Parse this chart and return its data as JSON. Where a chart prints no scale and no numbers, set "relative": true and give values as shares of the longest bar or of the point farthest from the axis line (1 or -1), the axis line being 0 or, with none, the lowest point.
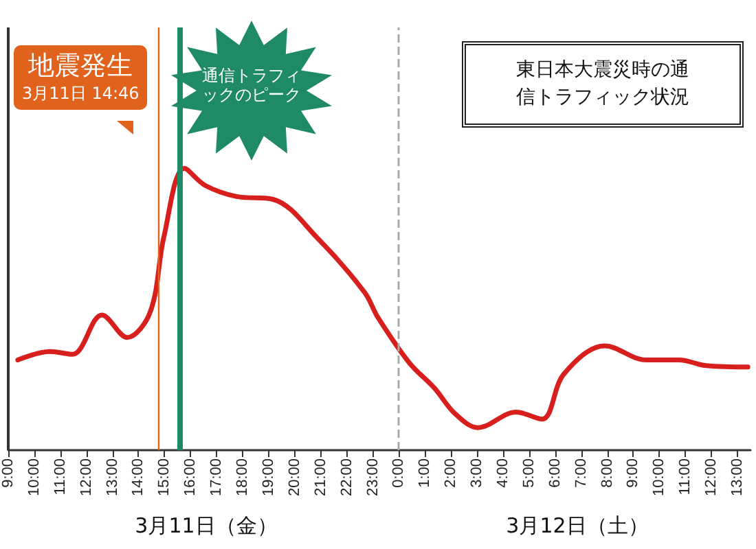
{
  "chart_data": {
    "type": "line",
    "relative": true,
    "title": "東日本大震災時の通信トラフィック状況",
    "x": [
      "--03-11T09:22",
      "--03-11T10:36",
      "--03-11T11:28",
      "--03-11T12:36",
      "--03-11T13:34",
      "--03-11T14:27",
      "--03-11T14:59",
      "--03-11T15:46",
      "--03-11T16:33",
      "--03-11T17:46",
      "--03-11T19:10",
      "--03-11T20:54",
      "--03-11T22:41",
      "--03-11T23:12",
      "--03-12T00:24",
      "--03-12T01:22",
      "--03-12T02:09",
      "--03-12T03:02",
      "--03-12T04:30",
      "--03-12T05:30",
      "--03-12T06:20",
      "--03-12T07:54",
      "--03-12T09:30",
      "--03-12T10:45",
      "--03-12T11:48",
      "--03-12T13:24"
    ],
    "xlim": [
      "--03-11T09:00",
      "--03-12T13:30"
    ],
    "xticks": [
      {
        "value": "--03-11T09:00",
        "label": "9:00"
      },
      {
        "value": "--03-11T10:00",
        "label": "10:00"
      },
      {
        "value": "--03-11T11:00",
        "label": "11:00"
      },
      {
        "value": "--03-11T12:00",
        "label": "12:00"
      },
      {
        "value": "--03-11T13:00",
        "label": "13:00"
      },
      {
        "value": "--03-11T14:00",
        "label": "14:00"
      },
      {
        "value": "--03-11T15:00",
        "label": "15:00"
      },
      {
        "value": "--03-11T16:00",
        "label": "16:00"
      },
      {
        "value": "--03-11T17:00",
        "label": "17:00"
      },
      {
        "value": "--03-11T18:00",
        "label": "18:00"
      },
      {
        "value": "--03-11T19:00",
        "label": "19:00"
      },
      {
        "value": "--03-11T20:00",
        "label": "20:00"
      },
      {
        "value": "--03-11T21:00",
        "label": "21:00"
      },
      {
        "value": "--03-11T22:00",
        "label": "22:00"
      },
      {
        "value": "--03-11T23:00",
        "label": "23:00"
      },
      {
        "value": "--03-12T00:00",
        "label": "0:00"
      },
      {
        "value": "--03-12T01:00",
        "label": "1:00"
      },
      {
        "value": "--03-12T02:00",
        "label": "2:00"
      },
      {
        "value": "--03-12T03:00",
        "label": "3:00"
      },
      {
        "value": "--03-12T04:00",
        "label": "4:00"
      },
      {
        "value": "--03-12T05:00",
        "label": "5:00"
      },
      {
        "value": "--03-12T06:00",
        "label": "6:00"
      },
      {
        "value": "--03-12T07:00",
        "label": "7:00"
      },
      {
        "value": "--03-12T08:00",
        "label": "8:00"
      },
      {
        "value": "--03-12T09:00",
        "label": "9:00"
      },
      {
        "value": "--03-12T10:00",
        "label": "10:00"
      },
      {
        "value": "--03-12T11:00",
        "label": "11:00"
      },
      {
        "value": "--03-12T12:00",
        "label": "12:00"
      },
      {
        "value": "--03-12T13:00",
        "label": "13:00"
      }
    ],
    "series": [
      {
        "color": "#d7201e",
        "values": [
          0.32,
          0.35,
          0.34,
          0.48,
          0.4,
          0.49,
          0.76,
          1,
          0.94,
          0.9,
          0.89,
          0.75,
          0.56,
          0.47,
          0.31,
          0.22,
          0.13,
          0.08,
          0.135,
          0.11,
          0.27,
          0.37,
          0.32,
          0.32,
          0.3,
          0.295
        ]
      }
    ],
    "ref_lines": [
      {
        "axis": "x",
        "value": "--03-11T14:46",
        "label": "地震発生\n3月11日 14:46",
        "color": "#e0621d",
        "line_style": "solid"
      },
      {
        "axis": "x",
        "value": "--03-11T15:36",
        "label": "通信トラフィックのピーク",
        "color": "#1f8a66",
        "line_style": "solid"
      },
      {
        "axis": "x",
        "value": "--03-12T00:00",
        "label": null,
        "color": "#aaaaaa",
        "line_style": "dashed"
      }
    ],
    "annotations": [
      "3月11日（金）",
      "3月12日（土）"
    ]
  }
}
